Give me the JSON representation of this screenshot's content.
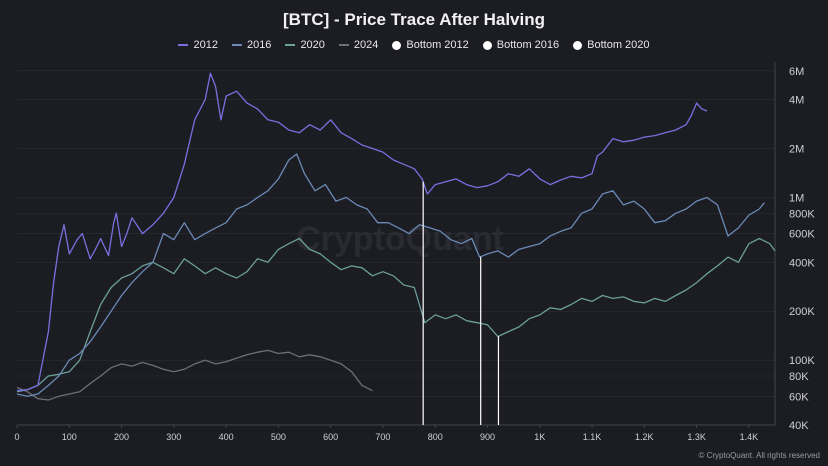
{
  "chart_data": {
    "type": "line",
    "title": "[BTC] - Price Trace After Halving",
    "xlabel": "",
    "ylabel": "",
    "xlim": [
      0,
      1450
    ],
    "ylim": [
      40000,
      6800000
    ],
    "yscale": "log",
    "x_ticks": [
      0,
      100,
      200,
      300,
      400,
      500,
      600,
      700,
      800,
      900,
      1000,
      1100,
      1200,
      1300,
      1400
    ],
    "x_tick_labels": [
      "0",
      "100",
      "200",
      "300",
      "400",
      "500",
      "600",
      "700",
      "800",
      "900",
      "1K",
      "1.1K",
      "1.2K",
      "1.3K",
      "1.4K"
    ],
    "y_ticks": [
      40000,
      60000,
      80000,
      100000,
      200000,
      400000,
      600000,
      800000,
      1000000,
      2000000,
      4000000,
      6000000
    ],
    "y_tick_labels": [
      "40K",
      "60K",
      "80K",
      "100K",
      "200K",
      "400K",
      "600K",
      "800K",
      "1M",
      "2M",
      "4M",
      "6M"
    ],
    "legend_position": "top-center",
    "series": [
      {
        "name": "2012",
        "color": "#7b6fe0",
        "points": [
          [
            0,
            65000
          ],
          [
            20,
            66000
          ],
          [
            40,
            70000
          ],
          [
            60,
            150000
          ],
          [
            70,
            300000
          ],
          [
            80,
            500000
          ],
          [
            90,
            680000
          ],
          [
            100,
            450000
          ],
          [
            115,
            550000
          ],
          [
            125,
            600000
          ],
          [
            140,
            420000
          ],
          [
            150,
            480000
          ],
          [
            160,
            560000
          ],
          [
            175,
            440000
          ],
          [
            185,
            700000
          ],
          [
            190,
            800000
          ],
          [
            200,
            500000
          ],
          [
            210,
            600000
          ],
          [
            220,
            750000
          ],
          [
            240,
            600000
          ],
          [
            260,
            680000
          ],
          [
            280,
            800000
          ],
          [
            300,
            1000000
          ],
          [
            320,
            1600000
          ],
          [
            340,
            3000000
          ],
          [
            360,
            4000000
          ],
          [
            370,
            5800000
          ],
          [
            380,
            4800000
          ],
          [
            390,
            3000000
          ],
          [
            400,
            4200000
          ],
          [
            420,
            4500000
          ],
          [
            440,
            3800000
          ],
          [
            460,
            3500000
          ],
          [
            480,
            3000000
          ],
          [
            500,
            2900000
          ],
          [
            520,
            2600000
          ],
          [
            540,
            2500000
          ],
          [
            560,
            2800000
          ],
          [
            580,
            2600000
          ],
          [
            600,
            3000000
          ],
          [
            620,
            2500000
          ],
          [
            640,
            2300000
          ],
          [
            660,
            2100000
          ],
          [
            680,
            2000000
          ],
          [
            700,
            1900000
          ],
          [
            720,
            1700000
          ],
          [
            740,
            1600000
          ],
          [
            760,
            1500000
          ],
          [
            775,
            1300000
          ],
          [
            785,
            1050000
          ],
          [
            800,
            1200000
          ],
          [
            820,
            1250000
          ],
          [
            840,
            1300000
          ],
          [
            860,
            1200000
          ],
          [
            880,
            1150000
          ],
          [
            900,
            1180000
          ],
          [
            920,
            1250000
          ],
          [
            940,
            1400000
          ],
          [
            960,
            1350000
          ],
          [
            980,
            1500000
          ],
          [
            1000,
            1300000
          ],
          [
            1020,
            1200000
          ],
          [
            1040,
            1280000
          ],
          [
            1060,
            1350000
          ],
          [
            1080,
            1320000
          ],
          [
            1100,
            1400000
          ],
          [
            1110,
            1800000
          ],
          [
            1120,
            1900000
          ],
          [
            1140,
            2300000
          ],
          [
            1160,
            2200000
          ],
          [
            1180,
            2250000
          ],
          [
            1200,
            2350000
          ],
          [
            1220,
            2400000
          ],
          [
            1240,
            2500000
          ],
          [
            1260,
            2600000
          ],
          [
            1280,
            2800000
          ],
          [
            1290,
            3200000
          ],
          [
            1300,
            3800000
          ],
          [
            1310,
            3500000
          ],
          [
            1320,
            3400000
          ]
        ]
      },
      {
        "name": "2016",
        "color": "#6b8ab5",
        "points": [
          [
            0,
            62000
          ],
          [
            20,
            60000
          ],
          [
            40,
            62000
          ],
          [
            60,
            70000
          ],
          [
            80,
            80000
          ],
          [
            100,
            100000
          ],
          [
            120,
            110000
          ],
          [
            140,
            130000
          ],
          [
            160,
            160000
          ],
          [
            180,
            200000
          ],
          [
            200,
            250000
          ],
          [
            220,
            300000
          ],
          [
            240,
            350000
          ],
          [
            260,
            400000
          ],
          [
            280,
            600000
          ],
          [
            300,
            550000
          ],
          [
            320,
            700000
          ],
          [
            340,
            550000
          ],
          [
            360,
            600000
          ],
          [
            380,
            650000
          ],
          [
            400,
            700000
          ],
          [
            420,
            850000
          ],
          [
            440,
            900000
          ],
          [
            460,
            1000000
          ],
          [
            480,
            1100000
          ],
          [
            500,
            1300000
          ],
          [
            520,
            1700000
          ],
          [
            535,
            1850000
          ],
          [
            550,
            1400000
          ],
          [
            570,
            1100000
          ],
          [
            590,
            1200000
          ],
          [
            610,
            950000
          ],
          [
            630,
            1000000
          ],
          [
            650,
            900000
          ],
          [
            670,
            850000
          ],
          [
            690,
            700000
          ],
          [
            710,
            700000
          ],
          [
            730,
            650000
          ],
          [
            750,
            600000
          ],
          [
            770,
            680000
          ],
          [
            790,
            650000
          ],
          [
            810,
            620000
          ],
          [
            830,
            550000
          ],
          [
            850,
            520000
          ],
          [
            870,
            560000
          ],
          [
            885,
            430000
          ],
          [
            900,
            450000
          ],
          [
            920,
            470000
          ],
          [
            940,
            430000
          ],
          [
            960,
            480000
          ],
          [
            980,
            500000
          ],
          [
            1000,
            520000
          ],
          [
            1020,
            580000
          ],
          [
            1040,
            620000
          ],
          [
            1060,
            650000
          ],
          [
            1080,
            800000
          ],
          [
            1100,
            850000
          ],
          [
            1120,
            1050000
          ],
          [
            1140,
            1100000
          ],
          [
            1160,
            900000
          ],
          [
            1180,
            950000
          ],
          [
            1200,
            850000
          ],
          [
            1220,
            700000
          ],
          [
            1240,
            720000
          ],
          [
            1260,
            800000
          ],
          [
            1280,
            850000
          ],
          [
            1300,
            950000
          ],
          [
            1320,
            1000000
          ],
          [
            1340,
            900000
          ],
          [
            1360,
            580000
          ],
          [
            1380,
            650000
          ],
          [
            1400,
            780000
          ],
          [
            1420,
            850000
          ],
          [
            1430,
            930000
          ]
        ]
      },
      {
        "name": "2020",
        "color": "#6a9f9a",
        "points": [
          [
            0,
            64000
          ],
          [
            20,
            66000
          ],
          [
            40,
            70000
          ],
          [
            60,
            80000
          ],
          [
            80,
            82000
          ],
          [
            100,
            85000
          ],
          [
            120,
            100000
          ],
          [
            140,
            150000
          ],
          [
            160,
            220000
          ],
          [
            180,
            280000
          ],
          [
            200,
            320000
          ],
          [
            220,
            340000
          ],
          [
            240,
            380000
          ],
          [
            260,
            400000
          ],
          [
            280,
            370000
          ],
          [
            300,
            340000
          ],
          [
            320,
            420000
          ],
          [
            340,
            380000
          ],
          [
            360,
            340000
          ],
          [
            380,
            370000
          ],
          [
            400,
            340000
          ],
          [
            420,
            320000
          ],
          [
            440,
            350000
          ],
          [
            460,
            420000
          ],
          [
            480,
            400000
          ],
          [
            500,
            480000
          ],
          [
            520,
            520000
          ],
          [
            540,
            560000
          ],
          [
            560,
            480000
          ],
          [
            580,
            450000
          ],
          [
            600,
            400000
          ],
          [
            620,
            360000
          ],
          [
            640,
            380000
          ],
          [
            660,
            370000
          ],
          [
            680,
            330000
          ],
          [
            700,
            350000
          ],
          [
            720,
            330000
          ],
          [
            740,
            290000
          ],
          [
            760,
            280000
          ],
          [
            780,
            170000
          ],
          [
            800,
            190000
          ],
          [
            820,
            180000
          ],
          [
            840,
            190000
          ],
          [
            860,
            175000
          ],
          [
            880,
            170000
          ],
          [
            900,
            165000
          ],
          [
            920,
            140000
          ],
          [
            940,
            150000
          ],
          [
            960,
            160000
          ],
          [
            980,
            180000
          ],
          [
            1000,
            190000
          ],
          [
            1020,
            210000
          ],
          [
            1040,
            205000
          ],
          [
            1060,
            220000
          ],
          [
            1080,
            240000
          ],
          [
            1100,
            230000
          ],
          [
            1120,
            250000
          ],
          [
            1140,
            240000
          ],
          [
            1160,
            245000
          ],
          [
            1180,
            230000
          ],
          [
            1200,
            225000
          ],
          [
            1220,
            240000
          ],
          [
            1240,
            230000
          ],
          [
            1260,
            250000
          ],
          [
            1280,
            270000
          ],
          [
            1300,
            300000
          ],
          [
            1320,
            340000
          ],
          [
            1340,
            380000
          ],
          [
            1360,
            430000
          ],
          [
            1380,
            400000
          ],
          [
            1400,
            520000
          ],
          [
            1420,
            560000
          ],
          [
            1440,
            520000
          ],
          [
            1450,
            470000
          ]
        ]
      },
      {
        "name": "2024",
        "color": "#6e6e78",
        "points": [
          [
            0,
            68000
          ],
          [
            20,
            64000
          ],
          [
            40,
            58000
          ],
          [
            60,
            57000
          ],
          [
            80,
            60000
          ],
          [
            100,
            62000
          ],
          [
            120,
            64000
          ],
          [
            140,
            72000
          ],
          [
            160,
            80000
          ],
          [
            180,
            90000
          ],
          [
            200,
            95000
          ],
          [
            220,
            92000
          ],
          [
            240,
            97000
          ],
          [
            260,
            93000
          ],
          [
            280,
            88000
          ],
          [
            300,
            85000
          ],
          [
            320,
            88000
          ],
          [
            340,
            95000
          ],
          [
            360,
            100000
          ],
          [
            380,
            95000
          ],
          [
            400,
            98000
          ],
          [
            420,
            103000
          ],
          [
            440,
            108000
          ],
          [
            460,
            112000
          ],
          [
            480,
            115000
          ],
          [
            500,
            110000
          ],
          [
            520,
            112000
          ],
          [
            540,
            105000
          ],
          [
            560,
            108000
          ],
          [
            580,
            105000
          ],
          [
            600,
            100000
          ],
          [
            620,
            95000
          ],
          [
            640,
            85000
          ],
          [
            660,
            70000
          ],
          [
            680,
            65000
          ]
        ]
      }
    ],
    "bottoms": [
      {
        "name": "Bottom 2012",
        "x": 777,
        "color": "#ffffff"
      },
      {
        "name": "Bottom 2016",
        "x": 887,
        "color": "#ffffff"
      },
      {
        "name": "Bottom 2020",
        "x": 921,
        "color": "#ffffff"
      }
    ]
  },
  "legend": {
    "items": [
      {
        "label": "2012",
        "kind": "line",
        "color": "#7b6fe0"
      },
      {
        "label": "2016",
        "kind": "line",
        "color": "#6b8ab5"
      },
      {
        "label": "2020",
        "kind": "line",
        "color": "#6a9f9a"
      },
      {
        "label": "2024",
        "kind": "line",
        "color": "#6e6e78"
      },
      {
        "label": "Bottom 2012",
        "kind": "dot",
        "color": "#ffffff"
      },
      {
        "label": "Bottom 2016",
        "kind": "dot",
        "color": "#ffffff"
      },
      {
        "label": "Bottom 2020",
        "kind": "dot",
        "color": "#ffffff"
      }
    ]
  },
  "watermark": "CryptoQuant",
  "footer": {
    "icon": "copyright-icon",
    "text": "© CryptoQuant. All rights reserved"
  },
  "colors": {
    "background": "#1c1c23",
    "grid": "#2e2e37",
    "axis_text": "#cfcfd6"
  }
}
